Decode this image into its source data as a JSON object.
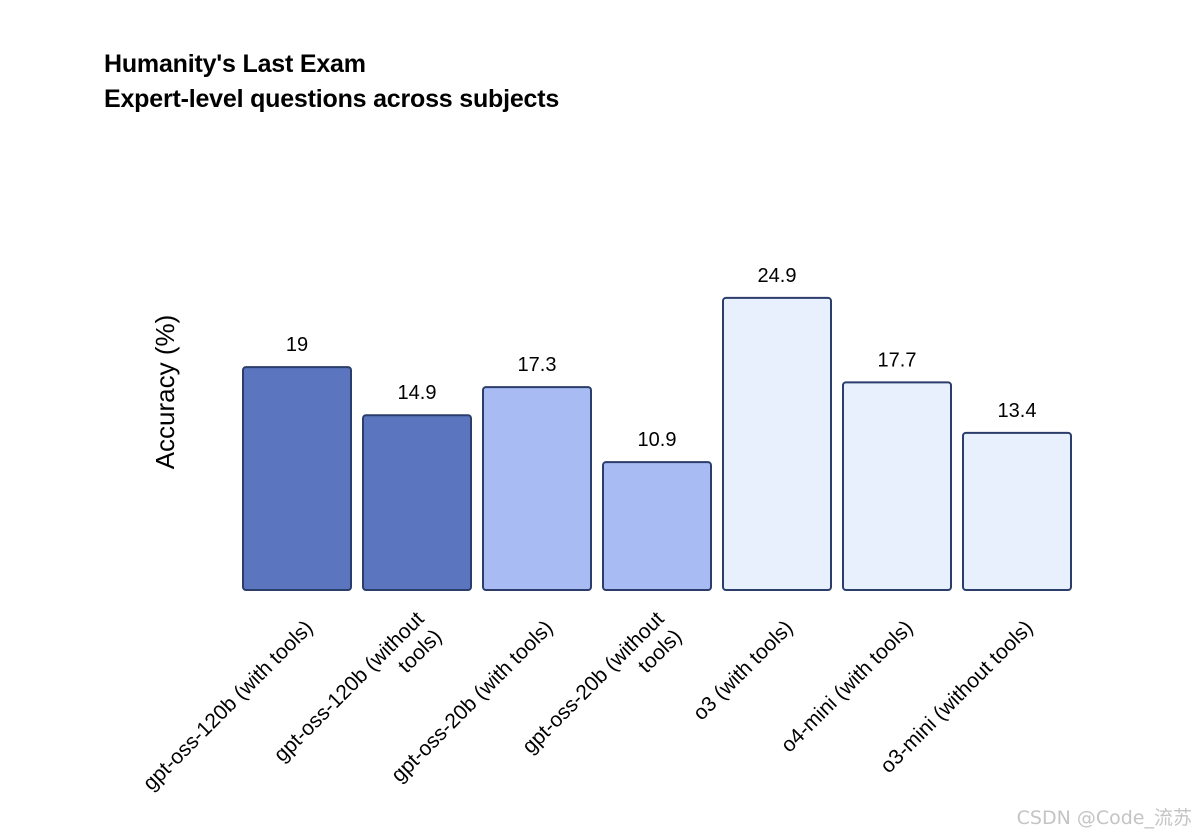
{
  "chart_data": {
    "type": "bar",
    "title": "Humanity's Last Exam",
    "subtitle": "Expert-level questions across subjects",
    "ylabel": "Accuracy (%)",
    "xlabel": "",
    "ylim": [
      0,
      27
    ],
    "grid": false,
    "categories": [
      [
        "gpt-oss-120b (with tools)"
      ],
      [
        "gpt-oss-120b (without",
        "tools)"
      ],
      [
        "gpt-oss-20b (with tools)"
      ],
      [
        "gpt-oss-20b (without",
        "tools)"
      ],
      [
        "o3 (with tools)"
      ],
      [
        "o4-mini (with tools)"
      ],
      [
        "o3-mini (without tools)"
      ]
    ],
    "values": [
      19,
      14.9,
      17.3,
      10.9,
      24.9,
      17.7,
      13.4
    ],
    "value_labels": [
      "19",
      "14.9",
      "17.3",
      "10.9",
      "24.9",
      "17.7",
      "13.4"
    ],
    "colors": [
      "#5b76bf",
      "#5b76bf",
      "#a8bbf3",
      "#a8bbf3",
      "#e8effd",
      "#e8effd",
      "#e8effd"
    ],
    "edge_color": "#2b3d6b"
  },
  "watermark": "CSDN @Code_流苏"
}
